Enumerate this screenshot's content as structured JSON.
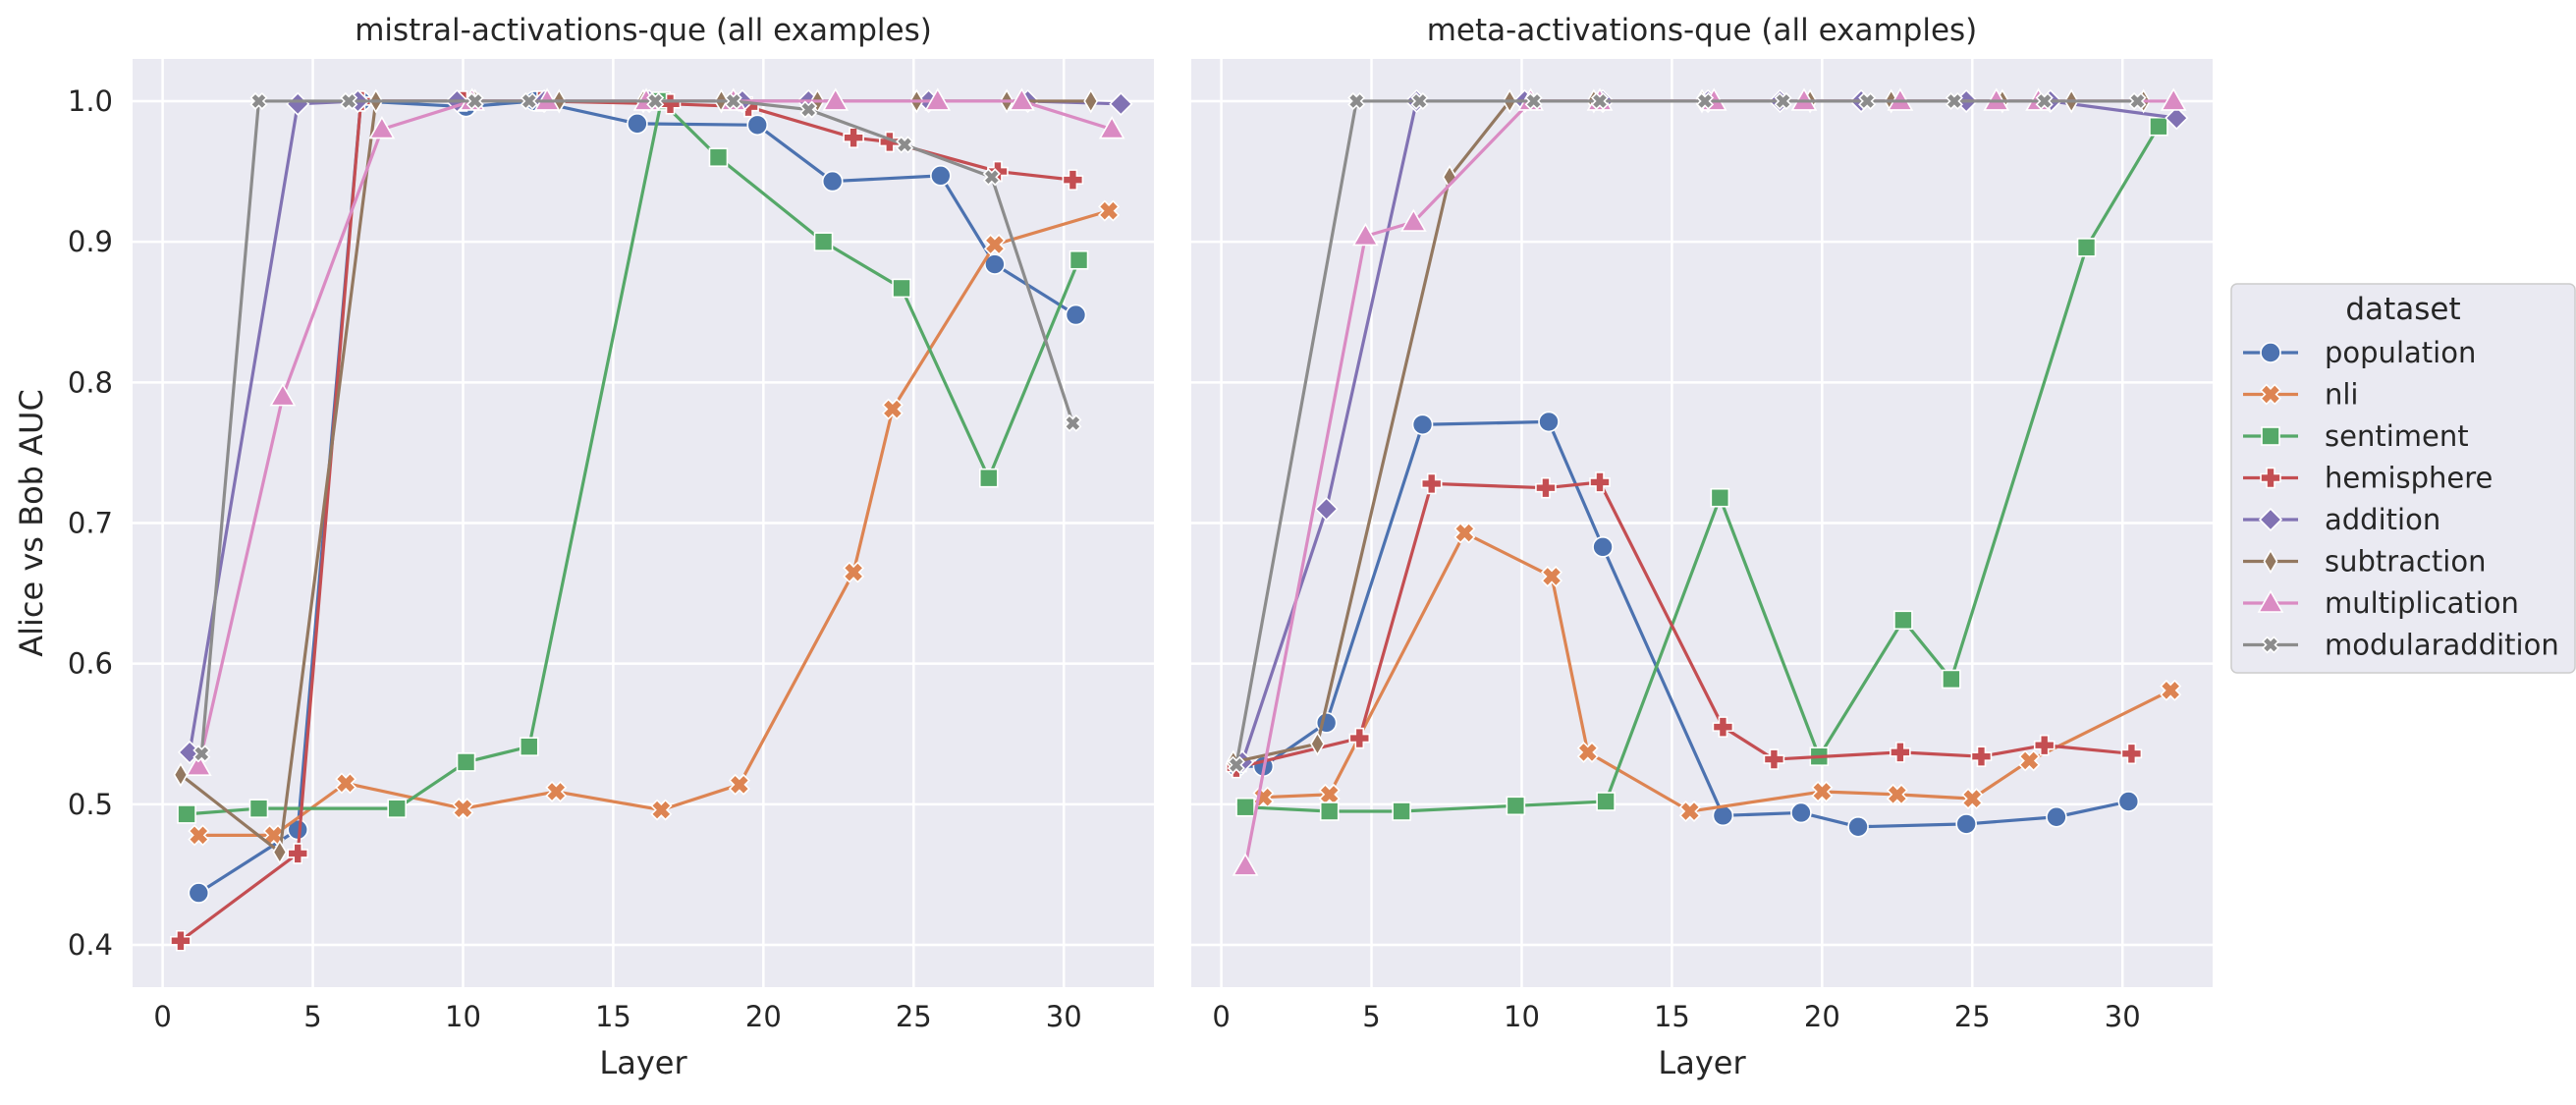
{
  "ylabel": "Alice vs Bob AUC",
  "legend": {
    "title": "dataset",
    "placement": "center-right"
  },
  "colors": {
    "population": "#4c72b0",
    "nli": "#dd8452",
    "sentiment": "#55a868",
    "hemisphere": "#c44e52",
    "addition": "#8172b3",
    "subtraction": "#937860",
    "multiplication": "#da8bc3",
    "modularaddition": "#8c8c8c"
  },
  "markers": {
    "population": "circle",
    "nli": "x-filled",
    "sentiment": "square",
    "hemisphere": "plus-filled",
    "addition": "diamond",
    "subtraction": "thin-diamond",
    "multiplication": "triangle",
    "modularaddition": "x-small"
  },
  "chart_data": [
    {
      "type": "line",
      "title": "mistral-activations-que (all examples)",
      "xlabel": "Layer",
      "ylabel": "Alice vs Bob AUC",
      "xlim": [
        -1,
        33
      ],
      "ylim": [
        0.37,
        1.03
      ],
      "xticks": [
        0,
        5,
        10,
        15,
        20,
        25,
        30
      ],
      "yticks": [
        0.4,
        0.5,
        0.6,
        0.7,
        0.8,
        0.9,
        1.0
      ],
      "ytick_labels": [
        "0.4",
        "0.5",
        "0.6",
        "0.7",
        "0.8",
        "0.9",
        "1.0"
      ],
      "grid": true,
      "series": [
        {
          "name": "population",
          "x": [
            1.2,
            4.5,
            6.6,
            10.1,
            12.4,
            15.8,
            19.8,
            22.3,
            25.9,
            27.7,
            30.4
          ],
          "y": [
            0.437,
            0.482,
            1.0,
            0.996,
            1.0,
            0.984,
            0.983,
            0.943,
            0.947,
            0.884,
            0.848
          ]
        },
        {
          "name": "nli",
          "x": [
            1.2,
            3.7,
            6.1,
            10.0,
            13.1,
            16.6,
            19.2,
            23.0,
            24.3,
            27.7,
            31.5
          ],
          "y": [
            0.478,
            0.478,
            0.515,
            0.497,
            0.509,
            0.496,
            0.514,
            0.665,
            0.781,
            0.898,
            0.922
          ]
        },
        {
          "name": "sentiment",
          "x": [
            0.8,
            3.2,
            7.8,
            10.1,
            12.2,
            16.6,
            18.5,
            22.0,
            24.6,
            27.5,
            30.5
          ],
          "y": [
            0.493,
            0.497,
            0.497,
            0.53,
            0.541,
            1.0,
            0.96,
            0.9,
            0.867,
            0.732,
            0.887
          ]
        },
        {
          "name": "hemisphere",
          "x": [
            0.6,
            4.5,
            6.6,
            10.0,
            12.6,
            16.9,
            19.5,
            23.0,
            24.2,
            27.8,
            30.3
          ],
          "y": [
            0.403,
            0.465,
            1.0,
            1.0,
            1.0,
            0.998,
            0.996,
            0.974,
            0.971,
            0.95,
            0.944
          ]
        },
        {
          "name": "addition",
          "x": [
            0.9,
            4.5,
            6.5,
            9.8,
            12.7,
            16.2,
            19.3,
            21.5,
            25.5,
            28.8,
            31.9
          ],
          "y": [
            0.537,
            0.998,
            1.0,
            1.0,
            1.0,
            1.0,
            1.0,
            1.0,
            1.0,
            1.0,
            0.998
          ]
        },
        {
          "name": "subtraction",
          "x": [
            0.6,
            3.9,
            7.1,
            10.4,
            13.2,
            16.0,
            18.6,
            21.8,
            25.1,
            28.1,
            30.9
          ],
          "y": [
            0.521,
            0.466,
            1.0,
            1.0,
            1.0,
            1.0,
            1.0,
            1.0,
            1.0,
            1.0,
            1.0
          ]
        },
        {
          "name": "multiplication",
          "x": [
            1.2,
            4.0,
            7.3,
            10.3,
            12.8,
            16.1,
            19.0,
            22.4,
            25.8,
            28.6,
            31.6
          ],
          "y": [
            0.527,
            0.79,
            0.98,
            1.0,
            1.0,
            1.0,
            1.0,
            1.0,
            1.0,
            1.0,
            0.98
          ]
        },
        {
          "name": "modularaddition",
          "x": [
            1.3,
            3.2,
            6.2,
            10.4,
            12.2,
            16.4,
            19.0,
            21.5,
            24.7,
            27.6,
            30.3
          ],
          "y": [
            0.536,
            1.0,
            1.0,
            1.0,
            1.0,
            1.0,
            1.0,
            0.994,
            0.969,
            0.946,
            0.771
          ]
        }
      ]
    },
    {
      "type": "line",
      "title": "meta-activations-que (all examples)",
      "xlabel": "Layer",
      "xlim": [
        -1,
        33
      ],
      "ylim": [
        0.37,
        1.03
      ],
      "xticks": [
        0,
        5,
        10,
        15,
        20,
        25,
        30
      ],
      "yticks": [
        0.4,
        0.5,
        0.6,
        0.7,
        0.8,
        0.9,
        1.0
      ],
      "grid": true,
      "series": [
        {
          "name": "population",
          "x": [
            0.5,
            1.4,
            3.5,
            6.7,
            10.9,
            12.7,
            16.7,
            19.3,
            21.2,
            24.8,
            27.8,
            30.2
          ],
          "y": [
            0.527,
            0.527,
            0.558,
            0.77,
            0.772,
            0.683,
            0.492,
            0.494,
            0.484,
            0.486,
            0.491,
            0.502
          ]
        },
        {
          "name": "nli",
          "x": [
            1.4,
            3.6,
            8.1,
            11.0,
            12.2,
            15.6,
            20.0,
            22.5,
            25.0,
            26.9,
            31.6
          ],
          "y": [
            0.505,
            0.507,
            0.693,
            0.662,
            0.537,
            0.495,
            0.509,
            0.507,
            0.504,
            0.531,
            0.581
          ]
        },
        {
          "name": "sentiment",
          "x": [
            0.8,
            3.6,
            6.0,
            9.8,
            12.8,
            16.6,
            19.9,
            22.7,
            24.3,
            28.8,
            31.2
          ],
          "y": [
            0.498,
            0.495,
            0.495,
            0.499,
            0.502,
            0.718,
            0.534,
            0.631,
            0.589,
            0.896,
            0.982
          ]
        },
        {
          "name": "hemisphere",
          "x": [
            0.5,
            4.6,
            7.0,
            10.8,
            12.6,
            16.7,
            18.4,
            22.6,
            25.3,
            27.4,
            30.3
          ],
          "y": [
            0.526,
            0.547,
            0.728,
            0.725,
            0.729,
            0.555,
            0.532,
            0.537,
            0.534,
            0.542,
            0.536
          ]
        },
        {
          "name": "addition",
          "x": [
            0.7,
            3.5,
            6.5,
            10.1,
            12.7,
            16.2,
            18.6,
            21.3,
            24.8,
            27.6,
            31.8
          ],
          "y": [
            0.53,
            0.71,
            1.0,
            1.0,
            1.0,
            1.0,
            1.0,
            1.0,
            1.0,
            1.0,
            0.988
          ]
        },
        {
          "name": "subtraction",
          "x": [
            0.4,
            3.2,
            7.6,
            9.6,
            12.4,
            16.0,
            19.6,
            22.3,
            26.0,
            28.3,
            30.7
          ],
          "y": [
            0.53,
            0.543,
            0.946,
            1.0,
            1.0,
            1.0,
            1.0,
            1.0,
            1.0,
            1.0,
            1.0
          ]
        },
        {
          "name": "multiplication",
          "x": [
            0.8,
            4.8,
            6.4,
            10.3,
            12.6,
            16.4,
            19.4,
            22.6,
            25.8,
            27.2,
            31.7
          ],
          "y": [
            0.456,
            0.904,
            0.914,
            1.0,
            1.0,
            1.0,
            1.0,
            1.0,
            1.0,
            1.0,
            1.0
          ]
        },
        {
          "name": "modularaddition",
          "x": [
            0.5,
            4.5,
            6.6,
            10.4,
            12.6,
            16.1,
            18.7,
            21.5,
            24.4,
            27.4,
            30.5
          ],
          "y": [
            0.528,
            1.0,
            1.0,
            1.0,
            1.0,
            1.0,
            1.0,
            1.0,
            1.0,
            1.0,
            1.0
          ]
        }
      ]
    }
  ]
}
